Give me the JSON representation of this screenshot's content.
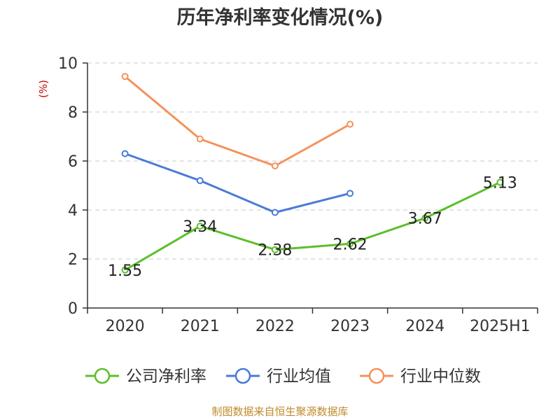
{
  "chart_data": {
    "type": "line",
    "title": "历年净利率变化情况(%)",
    "ylabel": "(%)",
    "xlabel": "",
    "categories": [
      "2020",
      "2021",
      "2022",
      "2023",
      "2024",
      "2025H1"
    ],
    "ylim": [
      0,
      10
    ],
    "yticks": [
      0,
      2,
      4,
      6,
      8,
      10
    ],
    "grid": true,
    "legend_position": "bottom",
    "series": [
      {
        "name": "公司净利率",
        "color": "#5cbf2a",
        "values": [
          1.55,
          3.34,
          2.38,
          2.62,
          3.67,
          5.13
        ],
        "labels": [
          "1.55",
          "3.34",
          "2.38",
          "2.62",
          "3.67",
          "5.13"
        ]
      },
      {
        "name": "行业均值",
        "color": "#4a7bd6",
        "values": [
          6.3,
          5.2,
          3.9,
          4.68,
          null,
          null
        ]
      },
      {
        "name": "行业中位数",
        "color": "#f5915a",
        "values": [
          9.45,
          6.9,
          5.8,
          7.5,
          null,
          null
        ]
      }
    ]
  },
  "footer": {
    "source": "制图数据来自恒生聚源数据库"
  }
}
